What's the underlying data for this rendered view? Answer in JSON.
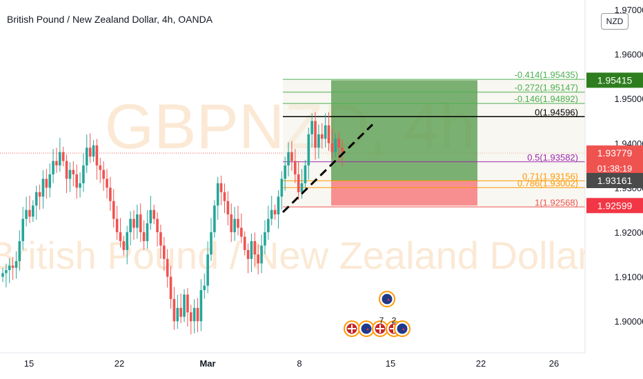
{
  "header": {
    "title": "British Pound / New Zealand Dollar, 4h, OANDA",
    "currency_button": "NZD"
  },
  "watermark": {
    "symbol": "GBPNZD, 4h",
    "description": "British Pound / New Zealand Dollar"
  },
  "colors": {
    "up": "#26a69a",
    "down": "#ef5350",
    "profit_zone": "#4a9440",
    "loss_zone": "#f77c80",
    "trendline": "#000000",
    "fib_green": "#4caf50",
    "fib_orange": "#ff9800",
    "fib_pink": "#9c27b0",
    "watermark": "#fbe9d5"
  },
  "events": {
    "upper_count": "",
    "lower_labels": [
      "7",
      "2"
    ]
  },
  "chart_data": {
    "type": "candlestick",
    "symbol": "GBPNZD",
    "interval": "4h",
    "ylim": [
      1.894,
      1.971
    ],
    "y_ticks": [
      "1.97000",
      "1.96000",
      "1.95000",
      "1.94000",
      "1.93000",
      "1.92000",
      "1.91000",
      "1.90000"
    ],
    "x_ticks": [
      "15",
      "22",
      "Mar",
      "8",
      "15",
      "22",
      "26"
    ],
    "current_price": 1.93779,
    "countdown": "01:38:19",
    "price_labels": [
      {
        "value": "1.95415",
        "role": "take_profit"
      },
      {
        "value": "1.93779",
        "role": "last"
      },
      {
        "value": "1.93161",
        "role": "entry"
      },
      {
        "value": "1.92599",
        "role": "stop"
      }
    ],
    "fib_levels": [
      {
        "ratio": "-0.414",
        "price": "1.95435",
        "color": "green"
      },
      {
        "ratio": "-0.272",
        "price": "1.95147",
        "color": "green"
      },
      {
        "ratio": "-0.146",
        "price": "1.94892",
        "color": "green"
      },
      {
        "ratio": "0",
        "price": "1.94596",
        "color": "black"
      },
      {
        "ratio": "0.5",
        "price": "1.93582",
        "color": "pink"
      },
      {
        "ratio": "0.71",
        "price": "1.93156",
        "color": "orange"
      },
      {
        "ratio": "0.786",
        "price": "1.93002",
        "color": "orange"
      },
      {
        "ratio": "1",
        "price": "1.92568",
        "color": "red"
      }
    ],
    "position": {
      "type": "long",
      "entry": 1.93161,
      "take_profit": 1.95415,
      "stop": 1.92599
    },
    "closes": [
      1.9108,
      1.9115,
      1.9125,
      1.912,
      1.9135,
      1.918,
      1.923,
      1.925,
      1.9235,
      1.926,
      1.929,
      1.928,
      1.932,
      1.93,
      1.933,
      1.936,
      1.935,
      1.938,
      1.936,
      1.932,
      1.934,
      1.933,
      1.93,
      1.931,
      1.935,
      1.939,
      1.937,
      1.9395,
      1.935,
      1.934,
      1.932,
      1.93,
      1.927,
      1.923,
      1.92,
      1.918,
      1.916,
      1.92,
      1.923,
      1.921,
      1.924,
      1.92,
      1.918,
      1.922,
      1.925,
      1.923,
      1.92,
      1.917,
      1.914,
      1.91,
      1.905,
      1.9,
      1.903,
      1.901,
      1.906,
      1.902,
      1.9,
      1.903,
      1.9,
      1.907,
      1.908,
      1.915,
      1.92,
      1.926,
      1.931,
      1.929,
      1.927,
      1.924,
      1.92,
      1.923,
      1.921,
      1.919,
      1.916,
      1.914,
      1.918,
      1.915,
      1.913,
      1.917,
      1.92,
      1.923,
      1.925,
      1.924,
      1.928,
      1.932,
      1.935,
      1.938,
      1.936,
      1.933,
      1.929,
      1.931,
      1.935,
      1.942,
      1.945,
      1.939,
      1.942,
      1.941,
      1.944,
      1.94,
      1.938,
      1.941,
      1.939,
      1.9378
    ]
  }
}
